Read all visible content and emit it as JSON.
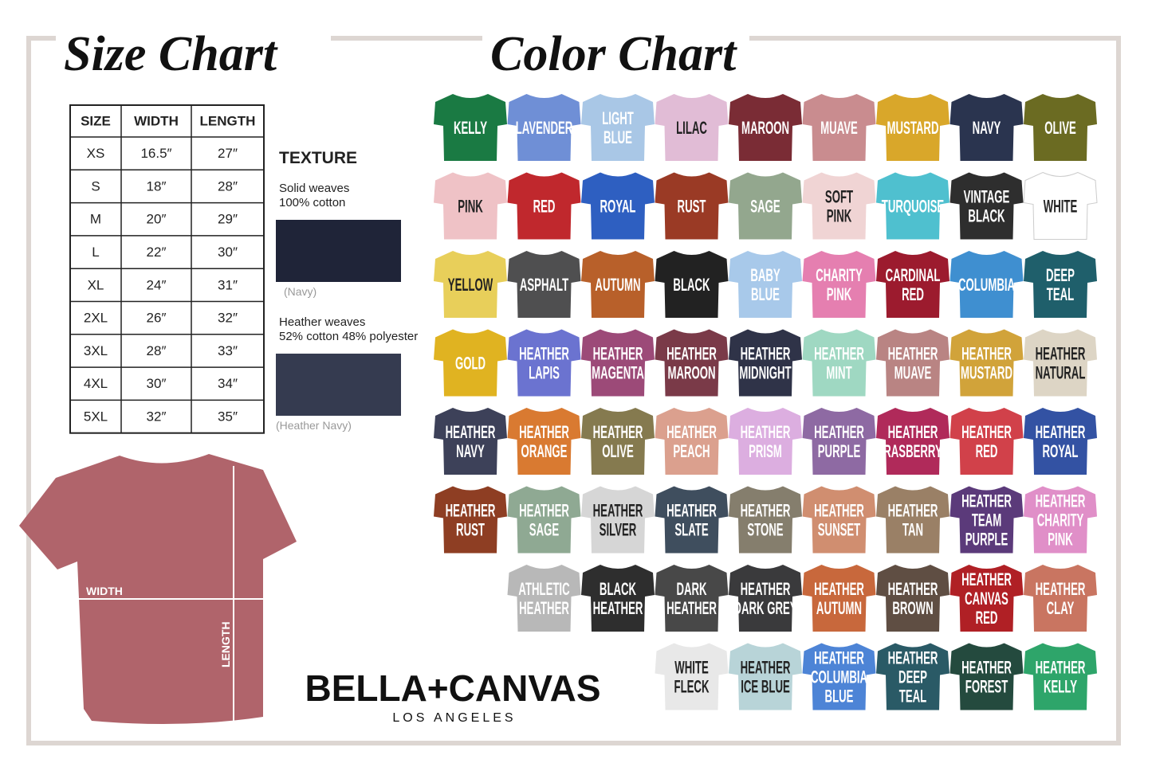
{
  "size_chart": {
    "title": "Size Chart",
    "table": {
      "header": [
        "SIZE",
        "WIDTH",
        "LENGTH"
      ],
      "rows": [
        [
          "XS",
          "16.5″",
          "27″"
        ],
        [
          "S",
          "18″",
          "28″"
        ],
        [
          "M",
          "20″",
          "29″"
        ],
        [
          "L",
          "22″",
          "30″"
        ],
        [
          "XL",
          "24″",
          "31″"
        ],
        [
          "2XL",
          "26″",
          "32″"
        ],
        [
          "3XL",
          "28″",
          "33″"
        ],
        [
          "4XL",
          "30″",
          "34″"
        ],
        [
          "5XL",
          "32″",
          "35″"
        ]
      ]
    }
  },
  "texture": {
    "title": "TEXTURE",
    "items": [
      {
        "lines": [
          "Solid weaves",
          "100% cotton"
        ],
        "caption": "(Navy)",
        "color": "#1f2438"
      },
      {
        "lines": [
          "Heather weaves",
          "52% cotton 48% polyester"
        ],
        "caption": "(Heather Navy)",
        "color": "#353b50"
      }
    ]
  },
  "diagram": {
    "width_label": "WIDTH",
    "length_label": "LENGTH",
    "color": "#b0646b"
  },
  "brand": {
    "name": "BELLA+CANVAS",
    "location": "LOS ANGELES"
  },
  "color_chart": {
    "title": "Color Chart",
    "rows": [
      [
        {
          "lines": [
            "KELLY"
          ],
          "color": "#1a7a43"
        },
        {
          "lines": [
            "LAVENDER"
          ],
          "color": "#6f8fd6"
        },
        {
          "lines": [
            "LIGHT",
            "BLUE"
          ],
          "color": "#a9c7e6"
        },
        {
          "lines": [
            "LILAC"
          ],
          "color": "#e1bcd6"
        },
        {
          "lines": [
            "MAROON"
          ],
          "color": "#7a2c35"
        },
        {
          "lines": [
            "MUAVE"
          ],
          "color": "#c98c8f"
        },
        {
          "lines": [
            "MUSTARD"
          ],
          "color": "#d9a72a"
        },
        {
          "lines": [
            "NAVY"
          ],
          "color": "#2a344f"
        },
        {
          "lines": [
            "OLIVE"
          ],
          "color": "#6b6b22"
        }
      ],
      [
        {
          "lines": [
            "PINK"
          ],
          "color": "#efc2c6"
        },
        {
          "lines": [
            "RED"
          ],
          "color": "#c0282d"
        },
        {
          "lines": [
            "ROYAL"
          ],
          "color": "#2e5fc1"
        },
        {
          "lines": [
            "RUST"
          ],
          "color": "#9a3a25"
        },
        {
          "lines": [
            "SAGE"
          ],
          "color": "#93a78e"
        },
        {
          "lines": [
            "SOFT",
            "PINK"
          ],
          "color": "#f0d4d4"
        },
        {
          "lines": [
            "TURQUOISE"
          ],
          "color": "#4fc0cf"
        },
        {
          "lines": [
            "VINTAGE",
            "BLACK"
          ],
          "color": "#2e2e2e"
        },
        {
          "lines": [
            "WHITE"
          ],
          "color": "#ffffff"
        }
      ],
      [
        {
          "lines": [
            "YELLOW"
          ],
          "color": "#e8cf5a"
        },
        {
          "lines": [
            "ASPHALT"
          ],
          "color": "#4f4f50"
        },
        {
          "lines": [
            "AUTUMN"
          ],
          "color": "#b8602a"
        },
        {
          "lines": [
            "BLACK"
          ],
          "color": "#222222"
        },
        {
          "lines": [
            "BABY",
            "BLUE"
          ],
          "color": "#a8c9ea"
        },
        {
          "lines": [
            "CHARITY",
            "PINK"
          ],
          "color": "#e57fb0"
        },
        {
          "lines": [
            "CARDINAL",
            "RED"
          ],
          "color": "#9c1b2e"
        },
        {
          "lines": [
            "COLUMBIA"
          ],
          "color": "#3f8fd0"
        },
        {
          "lines": [
            "DEEP",
            "TEAL"
          ],
          "color": "#1f5f6b"
        }
      ],
      [
        {
          "lines": [
            "GOLD"
          ],
          "color": "#e0b321"
        },
        {
          "lines": [
            "HEATHER",
            "LAPIS"
          ],
          "color": "#6b73d0"
        },
        {
          "lines": [
            "HEATHER",
            "MAGENTA"
          ],
          "color": "#9c4a78"
        },
        {
          "lines": [
            "HEATHER",
            "MAROON"
          ],
          "color": "#7a3a48"
        },
        {
          "lines": [
            "HEATHER",
            "MIDNIGHT"
          ],
          "color": "#2f3348"
        },
        {
          "lines": [
            "HEATHER",
            "MINT"
          ],
          "color": "#9fd8c2"
        },
        {
          "lines": [
            "HEATHER",
            "MUAVE"
          ],
          "color": "#b98483"
        },
        {
          "lines": [
            "HEATHER",
            "MUSTARD"
          ],
          "color": "#d1a33a"
        },
        {
          "lines": [
            "HEATHER",
            "NATURAL"
          ],
          "color": "#ddd5c5"
        }
      ],
      [
        {
          "lines": [
            "HEATHER",
            "NAVY"
          ],
          "color": "#3d4159"
        },
        {
          "lines": [
            "HEATHER",
            "ORANGE"
          ],
          "color": "#d97a31"
        },
        {
          "lines": [
            "HEATHER",
            "OLIVE"
          ],
          "color": "#857a4f"
        },
        {
          "lines": [
            "HEATHER",
            "PEACH"
          ],
          "color": "#dba08e"
        },
        {
          "lines": [
            "HEATHER",
            "PRISM"
          ],
          "color": "#dcaee0"
        },
        {
          "lines": [
            "HEATHER",
            "PURPLE"
          ],
          "color": "#8e6aa3"
        },
        {
          "lines": [
            "HEATHER",
            "RASBERRY"
          ],
          "color": "#b02a5a"
        },
        {
          "lines": [
            "HEATHER",
            "RED"
          ],
          "color": "#d1414a"
        },
        {
          "lines": [
            "HEATHER",
            "ROYAL"
          ],
          "color": "#3352a3"
        }
      ],
      [
        {
          "lines": [
            "HEATHER",
            "RUST"
          ],
          "color": "#8e3e23"
        },
        {
          "lines": [
            "HEATHER",
            "SAGE"
          ],
          "color": "#8fa993"
        },
        {
          "lines": [
            "HEATHER",
            "SILVER"
          ],
          "color": "#d6d6d6"
        },
        {
          "lines": [
            "HEATHER",
            "SLATE"
          ],
          "color": "#3f4e5e"
        },
        {
          "lines": [
            "HEATHER",
            "STONE"
          ],
          "color": "#857e6d"
        },
        {
          "lines": [
            "HEATHER",
            "SUNSET"
          ],
          "color": "#d08e70"
        },
        {
          "lines": [
            "HEATHER",
            "TAN"
          ],
          "color": "#9a8066"
        },
        {
          "lines": [
            "HEATHER",
            "TEAM",
            "PURPLE"
          ],
          "color": "#5b3a7a"
        },
        {
          "lines": [
            "HEATHER",
            "CHARITY",
            "PINK"
          ],
          "color": "#e08fc8"
        }
      ],
      [
        {
          "lines": [
            "ATHLETIC",
            "HEATHER"
          ],
          "color": "#b8b8b8"
        },
        {
          "lines": [
            "BLACK",
            "HEATHER"
          ],
          "color": "#2e2e2e"
        },
        {
          "lines": [
            "DARK",
            "HEATHER"
          ],
          "color": "#484848"
        },
        {
          "lines": [
            "HEATHER",
            "DARK GREY"
          ],
          "color": "#3a3a3c"
        },
        {
          "lines": [
            "HEATHER",
            "AUTUMN"
          ],
          "color": "#c8683c"
        },
        {
          "lines": [
            "HEATHER",
            "BROWN"
          ],
          "color": "#5f4e43"
        },
        {
          "lines": [
            "HEATHER",
            "CANVAS",
            "RED"
          ],
          "color": "#b02025"
        },
        {
          "lines": [
            "HEATHER",
            "CLAY"
          ],
          "color": "#c97561"
        }
      ],
      [
        {
          "lines": [
            "WHITE",
            "FLECK"
          ],
          "color": "#e8e8e8"
        },
        {
          "lines": [
            "HEATHER",
            "ICE BLUE"
          ],
          "color": "#b8d4d8"
        },
        {
          "lines": [
            "HEATHER",
            "COLUMBIA",
            "BLUE"
          ],
          "color": "#4d84d6"
        },
        {
          "lines": [
            "HEATHER",
            "DEEP",
            "TEAL"
          ],
          "color": "#2a5a66"
        },
        {
          "lines": [
            "HEATHER",
            "FOREST"
          ],
          "color": "#244a3e"
        },
        {
          "lines": [
            "HEATHER",
            "KELLY"
          ],
          "color": "#2ea56a"
        }
      ]
    ]
  }
}
